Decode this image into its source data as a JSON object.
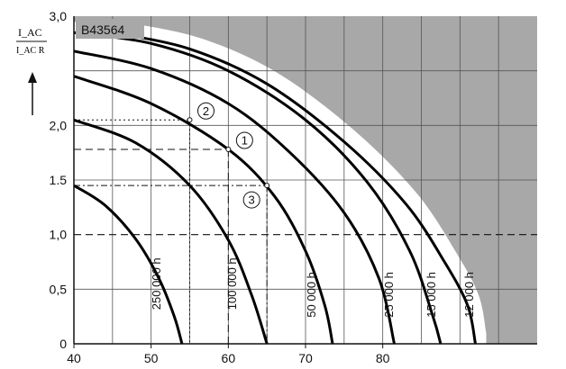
{
  "chart_data": {
    "type": "line",
    "title": "B43564",
    "ylabel_top": "I_AC",
    "ylabel_bottom": "I_AC R",
    "xlim": [
      40,
      100
    ],
    "ylim": [
      0,
      3.0
    ],
    "xticks": [
      "40",
      "50",
      "60",
      "70",
      "80"
    ],
    "yticks": [
      "0",
      "0,5",
      "1,0",
      "1.5",
      "2,0",
      "3,0"
    ],
    "series": [
      {
        "name": "250 000 h",
        "label_x": 51.2,
        "label_y": 0.55,
        "points": [
          [
            40,
            1.45
          ],
          [
            44,
            1.27
          ],
          [
            48,
            0.96
          ],
          [
            51,
            0.6
          ],
          [
            53,
            0.25
          ],
          [
            54,
            0.0
          ]
        ]
      },
      {
        "name": "100 000 h",
        "label_x": 61.0,
        "label_y": 0.55,
        "points": [
          [
            40,
            2.05
          ],
          [
            48,
            1.84
          ],
          [
            55,
            1.45
          ],
          [
            60,
            0.95
          ],
          [
            63,
            0.45
          ],
          [
            65,
            0.0
          ]
        ]
      },
      {
        "name": "50 000 h",
        "label_x": 71.3,
        "label_y": 0.45,
        "points": [
          [
            40,
            2.45
          ],
          [
            50,
            2.2
          ],
          [
            60,
            1.78
          ],
          [
            66,
            1.35
          ],
          [
            70,
            0.85
          ],
          [
            72.5,
            0.35
          ],
          [
            73.5,
            0.0
          ]
        ]
      },
      {
        "name": "25 000 h",
        "label_x": 81.3,
        "label_y": 0.45,
        "points": [
          [
            40,
            2.68
          ],
          [
            50,
            2.52
          ],
          [
            60,
            2.2
          ],
          [
            68,
            1.75
          ],
          [
            75,
            1.2
          ],
          [
            79.5,
            0.6
          ],
          [
            81.5,
            0.0
          ]
        ]
      },
      {
        "name": "15 000 h",
        "label_x": 86.8,
        "label_y": 0.45,
        "points": [
          [
            40,
            2.85
          ],
          [
            50,
            2.75
          ],
          [
            60,
            2.5
          ],
          [
            70,
            2.05
          ],
          [
            78,
            1.48
          ],
          [
            83.5,
            0.85
          ],
          [
            86.5,
            0.25
          ],
          [
            87.5,
            0.0
          ]
        ]
      },
      {
        "name": "12 000 h",
        "label_x": 91.7,
        "label_y": 0.45,
        "points": [
          [
            45,
            2.85
          ],
          [
            55,
            2.7
          ],
          [
            65,
            2.38
          ],
          [
            75,
            1.85
          ],
          [
            83,
            1.28
          ],
          [
            88,
            0.75
          ],
          [
            91,
            0.35
          ],
          [
            92,
            0.0
          ]
        ]
      }
    ],
    "reference_lines": [
      {
        "style": "dashed",
        "y": 1.0
      },
      {
        "style": "dotted",
        "point": [
          55,
          2.05
        ]
      },
      {
        "style": "dashed",
        "point": [
          60,
          1.78
        ]
      },
      {
        "style": "dashdot",
        "point": [
          65,
          1.45
        ]
      }
    ],
    "markers": [
      {
        "label": "2",
        "x": 55,
        "y": 2.05
      },
      {
        "label": "1",
        "x": 60,
        "y": 1.78
      },
      {
        "label": "3",
        "x": 65,
        "y": 1.45
      }
    ]
  }
}
